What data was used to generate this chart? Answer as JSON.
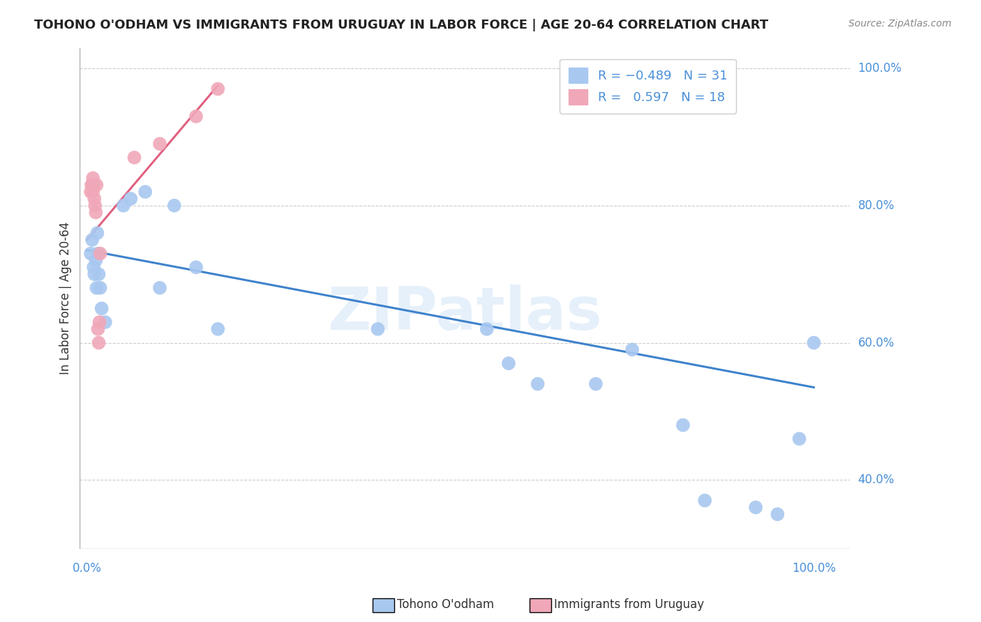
{
  "title": "TOHONO O'ODHAM VS IMMIGRANTS FROM URUGUAY IN LABOR FORCE | AGE 20-64 CORRELATION CHART",
  "source": "Source: ZipAtlas.com",
  "ylabel": "In Labor Force | Age 20-64",
  "watermark": "ZIPatlas",
  "blue_color": "#A8C8F0",
  "pink_color": "#F0A8B8",
  "blue_line_color": "#3E82CC",
  "pink_line_color": "#E06080",
  "legend_text_color": "#4A90D9",
  "axis_color": "#4A90D9",
  "blue_scatter_x": [
    0.005,
    0.007,
    0.009,
    0.01,
    0.012,
    0.013,
    0.014,
    0.015,
    0.016,
    0.018,
    0.02,
    0.025,
    0.05,
    0.06,
    0.08,
    0.1,
    0.12,
    0.15,
    0.18,
    0.4,
    0.55,
    0.58,
    0.62,
    0.7,
    0.75,
    0.82,
    0.85,
    0.92,
    0.95,
    0.98,
    1.0
  ],
  "blue_scatter_y": [
    0.73,
    0.75,
    0.71,
    0.7,
    0.72,
    0.68,
    0.76,
    0.73,
    0.7,
    0.68,
    0.65,
    0.63,
    0.8,
    0.81,
    0.82,
    0.68,
    0.8,
    0.71,
    0.62,
    0.62,
    0.62,
    0.57,
    0.54,
    0.54,
    0.59,
    0.48,
    0.37,
    0.36,
    0.35,
    0.46,
    0.6
  ],
  "pink_scatter_x": [
    0.005,
    0.006,
    0.007,
    0.008,
    0.008,
    0.009,
    0.01,
    0.011,
    0.012,
    0.013,
    0.015,
    0.016,
    0.017,
    0.018,
    0.065,
    0.1,
    0.15,
    0.18
  ],
  "pink_scatter_y": [
    0.82,
    0.83,
    0.83,
    0.84,
    0.82,
    0.83,
    0.81,
    0.8,
    0.79,
    0.83,
    0.62,
    0.6,
    0.63,
    0.73,
    0.87,
    0.89,
    0.93,
    0.97
  ],
  "blue_line_x0": 0.0,
  "blue_line_x1": 1.0,
  "blue_line_y0": 0.735,
  "blue_line_y1": 0.535,
  "pink_line_x0": 0.0,
  "pink_line_x1": 0.18,
  "pink_line_y0": 0.75,
  "pink_line_y1": 0.975,
  "xmin": -0.01,
  "xmax": 1.05,
  "ymin": 0.3,
  "ymax": 1.03,
  "ytick_vals": [
    0.4,
    0.6,
    0.8,
    1.0
  ],
  "ytick_labels": [
    "40.0%",
    "60.0%",
    "80.0%",
    "100.0%"
  ],
  "xtick_vals": [
    0.0,
    1.0
  ],
  "xtick_labels": [
    "0.0%",
    "100.0%"
  ]
}
